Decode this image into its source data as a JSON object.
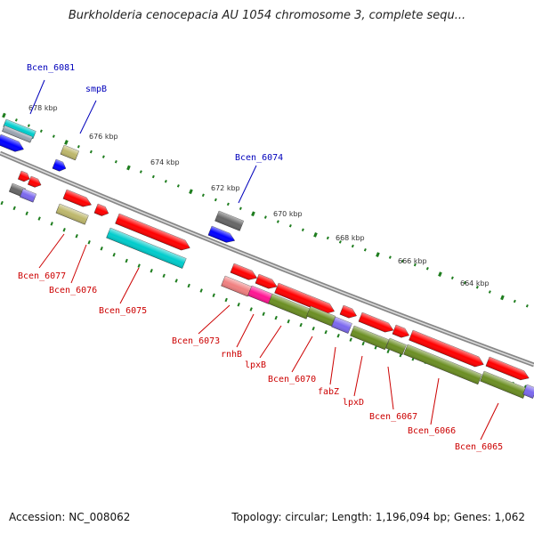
{
  "title": "Burkholderia cenocepacia AU 1054 chromosome 3, complete sequ...",
  "footer": {
    "accession": "Accession: NC_008062",
    "info": "Topology: circular; Length: 1,196,094 bp; Genes: 1,062"
  },
  "colors": {
    "label_plus": "#0000bb",
    "label_minus": "#cc0000",
    "tick": "#1e7d1e",
    "backbone": "#888888",
    "red": "#ff0000",
    "blue": "#0000ff",
    "cyan": "#00cccc",
    "olive": "#6b8e23",
    "khaki": "#bdb76b",
    "grey": "#666666",
    "slate": "#7b68ee",
    "salmon": "#f08080",
    "magenta": "#ff1493"
  },
  "scale_labels": [
    "678 kbp",
    "676 kbp",
    "674 kbp",
    "672 kbp",
    "670 kbp",
    "668 kbp",
    "666 kbp",
    "664 kbp"
  ],
  "gene_labels_plus": [
    "Bcen_6081",
    "smpB",
    "Bcen_6074"
  ],
  "gene_labels_minus": [
    "Bcen_6077",
    "Bcen_6076",
    "Bcen_6075",
    "Bcen_6073",
    "rnhB",
    "lpxB",
    "Bcen_6070",
    "fabZ",
    "lpxD",
    "Bcen_6067",
    "Bcen_6066",
    "Bcen_6065"
  ]
}
